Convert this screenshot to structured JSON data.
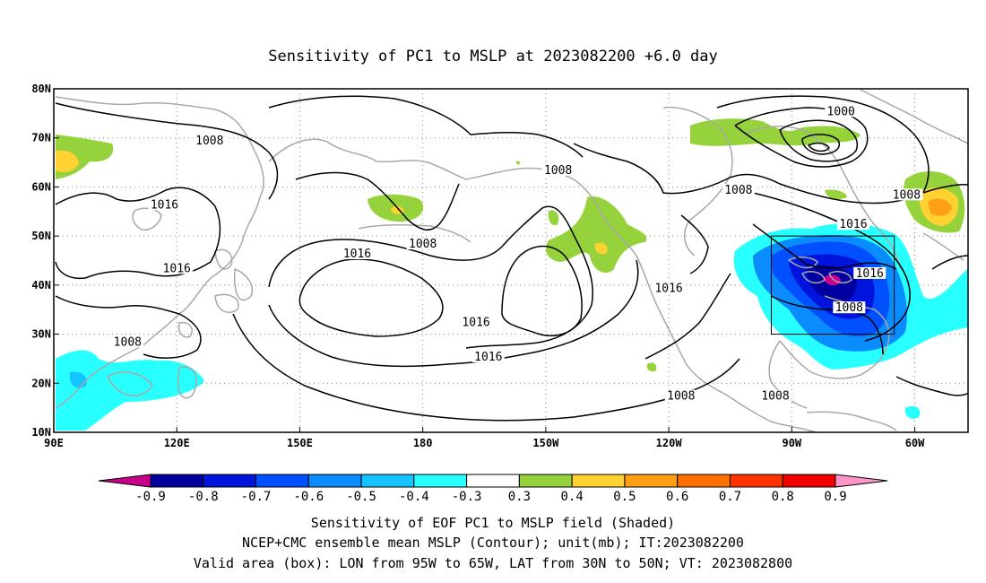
{
  "title": "Sensitivity of PC1 to MSLP at 2023082200 +6.0 day",
  "lat_ticks": [
    {
      "label": "80N",
      "value": 80
    },
    {
      "label": "70N",
      "value": 70
    },
    {
      "label": "60N",
      "value": 60
    },
    {
      "label": "50N",
      "value": 50
    },
    {
      "label": "40N",
      "value": 40
    },
    {
      "label": "30N",
      "value": 30
    },
    {
      "label": "20N",
      "value": 20
    },
    {
      "label": "10N",
      "value": 10
    }
  ],
  "lon_ticks": [
    {
      "label": "90E",
      "value": 90
    },
    {
      "label": "120E",
      "value": 120
    },
    {
      "label": "150E",
      "value": 150
    },
    {
      "label": "180",
      "value": 180
    },
    {
      "label": "150W",
      "value": 210
    },
    {
      "label": "120W",
      "value": 240
    },
    {
      "label": "90W",
      "value": 270
    },
    {
      "label": "60W",
      "value": 300
    }
  ],
  "domain": {
    "lon_min": 90,
    "lon_max": 313,
    "lat_min": 10,
    "lat_max": 80
  },
  "valid_box": {
    "lon_min": 265,
    "lon_max": 295,
    "lat_min": 30,
    "lat_max": 50
  },
  "colorbar": {
    "colors": [
      "#c8008c",
      "#0000a0",
      "#0014dc",
      "#0050ff",
      "#0a8cff",
      "#14c3ff",
      "#28ffff",
      "#ffffff",
      "#96d23c",
      "#ffd232",
      "#ffa014",
      "#ff6e00",
      "#ff3200",
      "#f00000",
      "#ff96c8"
    ],
    "labels": [
      "-0.9",
      "-0.8",
      "-0.7",
      "-0.6",
      "-0.5",
      "-0.4",
      "-0.3",
      "0.3",
      "0.4",
      "0.5",
      "0.6",
      "0.7",
      "0.8",
      "0.9"
    ]
  },
  "contour_labels": [
    {
      "text": "1008",
      "lon": 128,
      "lat": 69
    },
    {
      "text": "1016",
      "lon": 117,
      "lat": 56
    },
    {
      "text": "1016",
      "lon": 120,
      "lat": 43
    },
    {
      "text": "1008",
      "lon": 108,
      "lat": 28
    },
    {
      "text": "1016",
      "lon": 164,
      "lat": 46
    },
    {
      "text": "1008",
      "lon": 180,
      "lat": 48
    },
    {
      "text": "1008",
      "lon": 213,
      "lat": 63
    },
    {
      "text": "1008",
      "lon": 257,
      "lat": 59
    },
    {
      "text": "1000",
      "lon": 282,
      "lat": 75
    },
    {
      "text": "1008",
      "lon": 298,
      "lat": 58
    },
    {
      "text": "1016",
      "lon": 285,
      "lat": 52
    },
    {
      "text": "1016",
      "lon": 289,
      "lat": 42
    },
    {
      "text": "1008",
      "lon": 284,
      "lat": 35
    },
    {
      "text": "1016",
      "lon": 240,
      "lat": 39
    },
    {
      "text": "1016",
      "lon": 193,
      "lat": 32
    },
    {
      "text": "1016",
      "lon": 196,
      "lat": 25
    },
    {
      "text": "1008",
      "lon": 243,
      "lat": 17
    },
    {
      "text": "1008",
      "lon": 266,
      "lat": 17
    }
  ],
  "captions": [
    "Sensitivity of EOF PC1 to MSLP field (Shaded)",
    "NCEP+CMC ensemble mean MSLP (Contour); unit(mb); IT:2023082200",
    "Valid area (box): LON from 95W to 65W, LAT from 30N to 50N; VT: 2023082800"
  ]
}
